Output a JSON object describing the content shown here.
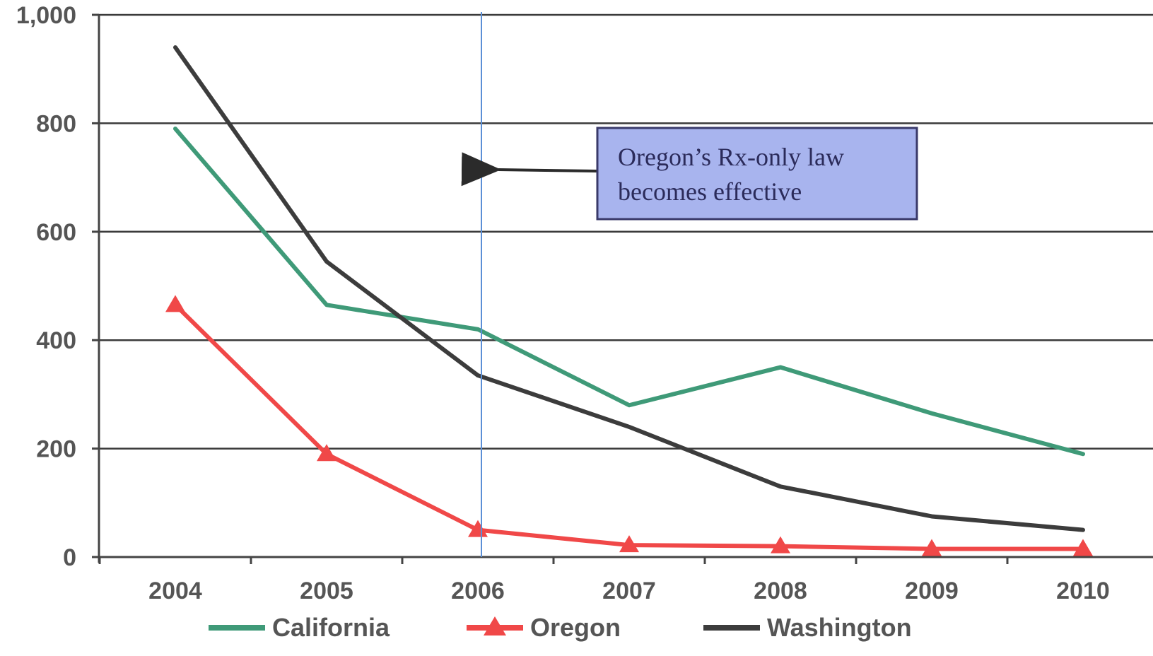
{
  "chart_data": {
    "type": "line",
    "title": "",
    "xlabel": "",
    "ylabel": "",
    "categories": [
      "2004",
      "2005",
      "2006",
      "2007",
      "2008",
      "2009",
      "2010"
    ],
    "ylim": [
      0,
      1000
    ],
    "yticks": [
      0,
      200,
      400,
      600,
      800,
      1000
    ],
    "ytick_labels": [
      "0",
      "200",
      "400",
      "600",
      "800",
      "1,000"
    ],
    "grid": true,
    "legend_position": "bottom",
    "series": [
      {
        "name": "California",
        "color": "#3f9a78",
        "marker": "none",
        "values": [
          790,
          465,
          420,
          280,
          350,
          265,
          190
        ]
      },
      {
        "name": "Oregon",
        "color": "#f04848",
        "marker": "triangle",
        "values": [
          465,
          190,
          50,
          22,
          20,
          15,
          15
        ]
      },
      {
        "name": "Washington",
        "color": "#3c3c3c",
        "marker": "none",
        "values": [
          940,
          545,
          335,
          240,
          130,
          75,
          50
        ]
      }
    ],
    "reference_line": {
      "x": "2006",
      "color": "#5b8fd6"
    },
    "annotation": {
      "lines": [
        "Oregon’s Rx-only law",
        "becomes effective"
      ],
      "box_color": "#a8b4ee",
      "border_color": "#3a3a6a"
    }
  }
}
